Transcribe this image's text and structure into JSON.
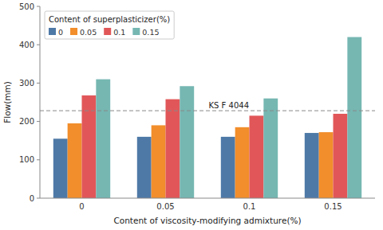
{
  "chart_data": {
    "type": "bar",
    "xlabel": "Content of viscosity-modifying admixture(%)",
    "ylabel": "Flow(mm)",
    "categories": [
      "0",
      "0.05",
      "0.1",
      "0.15"
    ],
    "legend_title": "Content of superplasticizer(%)",
    "legend": "upper left",
    "grid": false,
    "series": [
      {
        "name": "0",
        "color": "#4e79a7",
        "values": [
          155,
          160,
          160,
          170
        ]
      },
      {
        "name": "0.05",
        "color": "#f28e2b",
        "values": [
          195,
          190,
          185,
          172
        ]
      },
      {
        "name": "0.1",
        "color": "#e15759",
        "values": [
          268,
          258,
          215,
          220
        ]
      },
      {
        "name": "0.15",
        "color": "#76b7b2",
        "values": [
          310,
          292,
          260,
          420
        ]
      }
    ],
    "annotations": [
      {
        "text": "KS F 4044",
        "y": 228
      }
    ],
    "ylim": [
      0,
      500
    ],
    "yticks": [
      0,
      100,
      200,
      300,
      400,
      500
    ]
  }
}
